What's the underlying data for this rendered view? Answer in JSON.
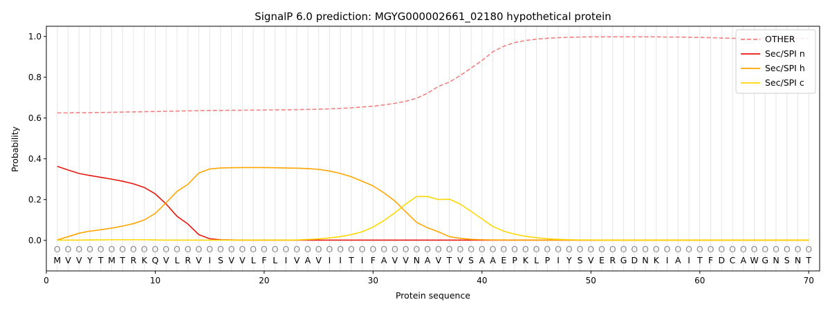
{
  "chart_data": {
    "type": "line",
    "title": "SignalP 6.0 prediction: MGYG000002661_02180 hypothetical protein",
    "xlabel": "Protein sequence",
    "ylabel": "Probability",
    "xlim": [
      0,
      71
    ],
    "ylim": [
      -0.15,
      1.05
    ],
    "x_ticks": [
      0,
      10,
      20,
      30,
      40,
      50,
      60,
      70
    ],
    "y_ticks": [
      0.0,
      0.2,
      0.4,
      0.6,
      0.8,
      1.0
    ],
    "x_tick_labels": [
      "0",
      "10",
      "20",
      "30",
      "40",
      "50",
      "60",
      "70"
    ],
    "y_tick_labels": [
      "0.0",
      "0.2",
      "0.4",
      "0.6",
      "0.8",
      "1.0"
    ],
    "grid": "vertical lines at each residue",
    "legend_position": "top-right",
    "sequence": [
      "M",
      "V",
      "V",
      "Y",
      "T",
      "M",
      "T",
      "R",
      "K",
      "Q",
      "V",
      "L",
      "R",
      "V",
      "I",
      "S",
      "V",
      "V",
      "L",
      "F",
      "L",
      "I",
      "V",
      "A",
      "V",
      "I",
      "I",
      "T",
      "I",
      "F",
      "A",
      "V",
      "V",
      "N",
      "A",
      "V",
      "T",
      "V",
      "S",
      "A",
      "A",
      "E",
      "P",
      "K",
      "L",
      "P",
      "I",
      "Y",
      "S",
      "V",
      "E",
      "R",
      "G",
      "D",
      "N",
      "K",
      "I",
      "A",
      "I",
      "T",
      "F",
      "D",
      "C",
      "A",
      "W",
      "G",
      "N",
      "S",
      "N",
      "T"
    ],
    "region_marker": "O",
    "series": [
      {
        "name": "OTHER",
        "color": "#f08080",
        "dashed": true,
        "values": [
          0.625,
          0.625,
          0.626,
          0.626,
          0.627,
          0.628,
          0.629,
          0.63,
          0.631,
          0.632,
          0.633,
          0.634,
          0.635,
          0.636,
          0.637,
          0.637,
          0.638,
          0.638,
          0.639,
          0.639,
          0.64,
          0.64,
          0.641,
          0.642,
          0.643,
          0.645,
          0.647,
          0.65,
          0.654,
          0.658,
          0.664,
          0.672,
          0.682,
          0.697,
          0.722,
          0.755,
          0.776,
          0.808,
          0.845,
          0.882,
          0.925,
          0.952,
          0.97,
          0.98,
          0.987,
          0.991,
          0.994,
          0.996,
          0.997,
          0.998,
          0.998,
          0.998,
          0.998,
          0.998,
          0.998,
          0.998,
          0.997,
          0.997,
          0.996,
          0.995,
          0.994,
          0.992,
          0.991,
          0.99,
          0.99,
          0.99,
          0.99,
          0.99,
          0.99,
          0.99
        ]
      },
      {
        "name": "Sec/SPI n",
        "color": "#e8160c",
        "dashed": false,
        "values": [
          0.363,
          0.345,
          0.328,
          0.318,
          0.309,
          0.3,
          0.29,
          0.277,
          0.259,
          0.228,
          0.178,
          0.118,
          0.08,
          0.028,
          0.008,
          0.003,
          0.002,
          0.001,
          0.001,
          0.001,
          0.001,
          0.001,
          0.001,
          0.001,
          0.001,
          0.001,
          0.001,
          0.001,
          0.001,
          0.001,
          0.001,
          0.001,
          0.001,
          0.001,
          0.001,
          0.001,
          0.001,
          0.001,
          0.001,
          0.001,
          0.001,
          0.001,
          0.001,
          0.001,
          0.001,
          0.001,
          0.001,
          0.001,
          0.001,
          0.001,
          0.001,
          0.001,
          0.001,
          0.001,
          0.001,
          0.001,
          0.001,
          0.001,
          0.001,
          0.001,
          0.001,
          0.001,
          0.001,
          0.001,
          0.001,
          0.001,
          0.001,
          0.001,
          0.001,
          0.001
        ]
      },
      {
        "name": "Sec/SPI h",
        "color": "#ffa500",
        "dashed": false,
        "values": [
          0.002,
          0.018,
          0.035,
          0.045,
          0.052,
          0.06,
          0.07,
          0.082,
          0.1,
          0.132,
          0.185,
          0.24,
          0.275,
          0.33,
          0.35,
          0.355,
          0.356,
          0.357,
          0.357,
          0.357,
          0.356,
          0.355,
          0.354,
          0.352,
          0.348,
          0.34,
          0.328,
          0.312,
          0.29,
          0.267,
          0.233,
          0.193,
          0.14,
          0.088,
          0.062,
          0.042,
          0.018,
          0.01,
          0.005,
          0.003,
          0.002,
          0.002,
          0.001,
          0.001,
          0.001,
          0.001,
          0.001,
          0.001,
          0.001,
          0.001,
          0.001,
          0.001,
          0.001,
          0.001,
          0.001,
          0.001,
          0.001,
          0.001,
          0.001,
          0.001,
          0.001,
          0.001,
          0.001,
          0.001,
          0.001,
          0.001,
          0.001,
          0.001,
          0.001,
          0.001
        ]
      },
      {
        "name": "Sec/SPI c",
        "color": "#ffd700",
        "dashed": false,
        "values": [
          0.001,
          0.001,
          0.001,
          0.002,
          0.002,
          0.003,
          0.003,
          0.003,
          0.003,
          0.002,
          0.001,
          0.001,
          0.001,
          0.001,
          0.001,
          0.001,
          0.001,
          0.001,
          0.001,
          0.001,
          0.001,
          0.001,
          0.002,
          0.004,
          0.007,
          0.012,
          0.018,
          0.028,
          0.042,
          0.065,
          0.097,
          0.135,
          0.178,
          0.215,
          0.215,
          0.2,
          0.202,
          0.178,
          0.142,
          0.105,
          0.068,
          0.045,
          0.03,
          0.02,
          0.013,
          0.008,
          0.005,
          0.003,
          0.002,
          0.002,
          0.001,
          0.001,
          0.001,
          0.001,
          0.001,
          0.001,
          0.001,
          0.001,
          0.001,
          0.001,
          0.001,
          0.001,
          0.001,
          0.001,
          0.001,
          0.001,
          0.001,
          0.001,
          0.001,
          0.001
        ]
      }
    ]
  }
}
